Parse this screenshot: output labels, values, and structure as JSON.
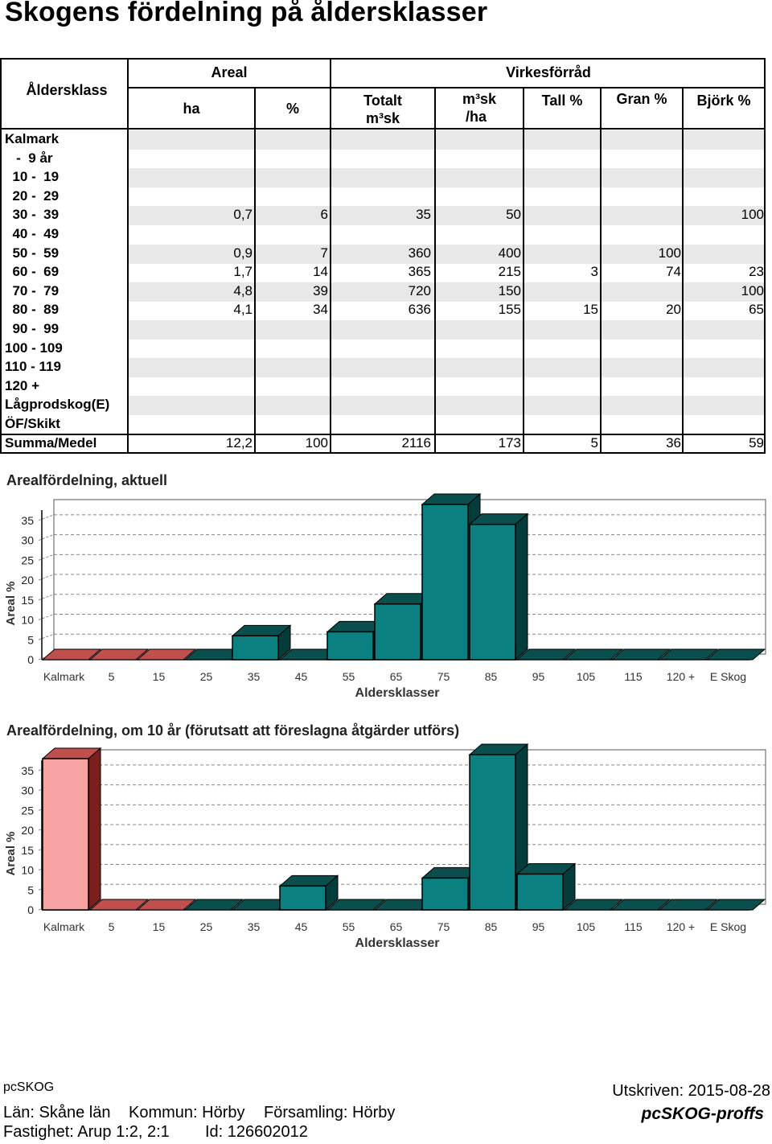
{
  "title": "Skogens fördelning på åldersklasser",
  "table": {
    "headers": {
      "alderklass": "Åldersklass",
      "areal": "Areal",
      "virkesforrad": "Virkesförråd",
      "ha": "ha",
      "pct": "%",
      "totalt": "Totalt",
      "totalt_unit": "m³sk",
      "msk": "m³sk",
      "msk_unit": "/ha",
      "tall": "Tall %",
      "gran": "Gran %",
      "bjork": "Björk %"
    },
    "rows": [
      {
        "label": "Kalmark",
        "ha": "",
        "pct": "",
        "totalt": "",
        "msk_ha": "",
        "tall": "",
        "gran": "",
        "bjork": ""
      },
      {
        "label": "   -  9 år",
        "ha": "",
        "pct": "",
        "totalt": "",
        "msk_ha": "",
        "tall": "",
        "gran": "",
        "bjork": ""
      },
      {
        "label": "  10 -  19",
        "ha": "",
        "pct": "",
        "totalt": "",
        "msk_ha": "",
        "tall": "",
        "gran": "",
        "bjork": ""
      },
      {
        "label": "  20 -  29",
        "ha": "",
        "pct": "",
        "totalt": "",
        "msk_ha": "",
        "tall": "",
        "gran": "",
        "bjork": ""
      },
      {
        "label": "  30 -  39",
        "ha": "0,7",
        "pct": "6",
        "totalt": "35",
        "msk_ha": "50",
        "tall": "",
        "gran": "",
        "bjork": "100"
      },
      {
        "label": "  40 -  49",
        "ha": "",
        "pct": "",
        "totalt": "",
        "msk_ha": "",
        "tall": "",
        "gran": "",
        "bjork": ""
      },
      {
        "label": "  50 -  59",
        "ha": "0,9",
        "pct": "7",
        "totalt": "360",
        "msk_ha": "400",
        "tall": "",
        "gran": "100",
        "bjork": ""
      },
      {
        "label": "  60 -  69",
        "ha": "1,7",
        "pct": "14",
        "totalt": "365",
        "msk_ha": "215",
        "tall": "3",
        "gran": "74",
        "bjork": "23"
      },
      {
        "label": "  70 -  79",
        "ha": "4,8",
        "pct": "39",
        "totalt": "720",
        "msk_ha": "150",
        "tall": "",
        "gran": "",
        "bjork": "100"
      },
      {
        "label": "  80 -  89",
        "ha": "4,1",
        "pct": "34",
        "totalt": "636",
        "msk_ha": "155",
        "tall": "15",
        "gran": "20",
        "bjork": "65"
      },
      {
        "label": "  90 -  99",
        "ha": "",
        "pct": "",
        "totalt": "",
        "msk_ha": "",
        "tall": "",
        "gran": "",
        "bjork": ""
      },
      {
        "label": "100 - 109",
        "ha": "",
        "pct": "",
        "totalt": "",
        "msk_ha": "",
        "tall": "",
        "gran": "",
        "bjork": ""
      },
      {
        "label": "110 - 119",
        "ha": "",
        "pct": "",
        "totalt": "",
        "msk_ha": "",
        "tall": "",
        "gran": "",
        "bjork": ""
      },
      {
        "label": "120 +",
        "ha": "",
        "pct": "",
        "totalt": "",
        "msk_ha": "",
        "tall": "",
        "gran": "",
        "bjork": ""
      },
      {
        "label": "Lågprodskog(E)",
        "ha": "",
        "pct": "",
        "totalt": "",
        "msk_ha": "",
        "tall": "",
        "gran": "",
        "bjork": ""
      },
      {
        "label": "ÖF/Skikt",
        "ha": "",
        "pct": "",
        "totalt": "",
        "msk_ha": "",
        "tall": "",
        "gran": "",
        "bjork": ""
      }
    ],
    "summary": {
      "label": "Summa/Medel",
      "ha": "12,2",
      "pct": "100",
      "totalt": "2116",
      "msk_ha": "173",
      "tall": "5",
      "gran": "36",
      "bjork": "59"
    }
  },
  "chart_data": [
    {
      "type": "bar",
      "title": "Arealfördelning, aktuell",
      "xlabel": "Aldersklasser",
      "ylabel": "Areal %",
      "categories": [
        "Kalmark",
        "5",
        "15",
        "25",
        "35",
        "45",
        "55",
        "65",
        "75",
        "85",
        "95",
        "105",
        "115",
        "120 +",
        "E Skog"
      ],
      "values": [
        0,
        0,
        0,
        0,
        6,
        0,
        7,
        14,
        39,
        34,
        0,
        0,
        0,
        0,
        0
      ],
      "ylim": [
        0,
        38
      ],
      "yticks": [
        0,
        5,
        10,
        15,
        20,
        25,
        30,
        35
      ],
      "grid": true,
      "colors": {
        "young": "#c0504d",
        "young_side": "#7b1e1e",
        "young_front_tall": "#f8a3a3",
        "mature": "#0b8080",
        "mature_side": "#043c3c",
        "mature_top": "#0a4e4e"
      }
    },
    {
      "type": "bar",
      "title": "Arealfördelning, om 10 år (förutsatt att föreslagna åtgärder utförs)",
      "xlabel": "Aldersklasser",
      "ylabel": "Areal %",
      "categories": [
        "Kalmark",
        "5",
        "15",
        "25",
        "35",
        "45",
        "55",
        "65",
        "75",
        "85",
        "95",
        "105",
        "115",
        "120 +",
        "E Skog"
      ],
      "values": [
        38,
        0,
        0,
        0,
        0,
        6,
        0,
        0,
        8,
        39,
        9,
        0,
        0,
        0,
        0
      ],
      "ylim": [
        0,
        38
      ],
      "yticks": [
        0,
        5,
        10,
        15,
        20,
        25,
        30,
        35
      ],
      "grid": true,
      "colors": {
        "young": "#c0504d",
        "young_side": "#7b1e1e",
        "young_front_tall": "#f8a3a3",
        "mature": "#0b8080",
        "mature_side": "#043c3c",
        "mature_top": "#0a4e4e"
      }
    }
  ],
  "footer": {
    "app": "pcSKOG",
    "printed": "Utskriven: 2015-08-28",
    "lan": "Län: Skåne län",
    "kommun": "Kommun: Hörby",
    "forsamling": "Församling: Hörby",
    "fastighet": "Fastighet: Arup 1:2, 2:1",
    "id": "Id: 126602012",
    "brand": "pcSKOG-proffs"
  }
}
